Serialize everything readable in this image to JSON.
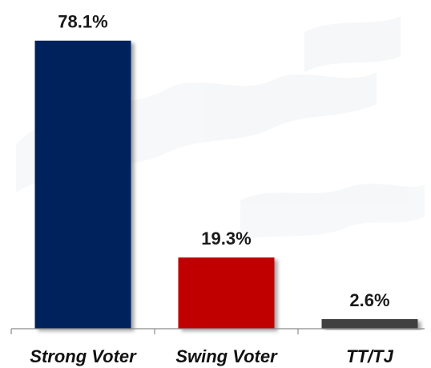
{
  "chart_data": {
    "type": "bar",
    "categories": [
      "Strong Voter",
      "Swing Voter",
      "TT/TJ"
    ],
    "values": [
      78.1,
      19.3,
      2.6
    ],
    "value_labels": [
      "78.1%",
      "19.3%",
      "2.6%"
    ],
    "colors": [
      "#00205b",
      "#c00000",
      "#404040"
    ],
    "ylim": [
      0,
      100
    ],
    "grid": false,
    "legend": "none"
  }
}
